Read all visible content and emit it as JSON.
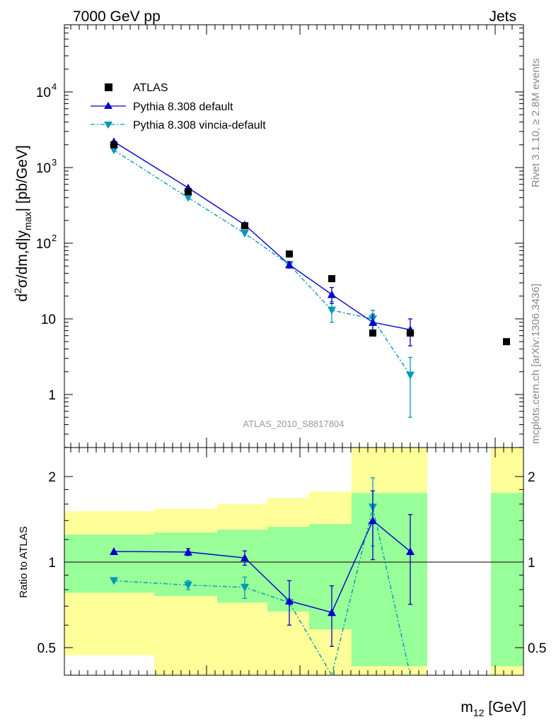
{
  "header": {
    "left": "7000 GeV pp",
    "right": "Jets"
  },
  "side_text": {
    "top": "Rivet 3.1.10, ≥ 2.8M events",
    "bottom": "mcplots.cern.ch [arXiv:1306.3436]"
  },
  "watermark": "ATLAS_2010_S8817804",
  "x_axis_label": "m",
  "x_axis_label_sub": "12",
  "x_axis_unit": " [GeV]",
  "main_ylabel_parts": [
    "d",
    "2",
    "σ/dm,d|y",
    "max",
    "| [pb/GeV]"
  ],
  "ratio_ylabel": "Ratio to ATLAS",
  "legend": [
    {
      "label": "ATLAS",
      "marker": "square",
      "color": "#000000"
    },
    {
      "label": "Pythia 8.308 default",
      "marker": "triangle-up",
      "color": "#0000cc"
    },
    {
      "label": "Pythia 8.308 vincia-default",
      "marker": "triangle-down",
      "color": "#0099bb"
    }
  ],
  "chart_data": {
    "type": "scatter",
    "title": "",
    "xlabel": "m12 [GeV]",
    "ylabel": "d2σ/dm,d|ymax| [pb/GeV]",
    "yscale": "log",
    "ylim": [
      0.17,
      90000
    ],
    "y_ticks": [
      "1",
      "10",
      "10^2",
      "10^3",
      "10^4"
    ],
    "bins": [
      {
        "atlas": 2000,
        "default": 2200,
        "vincia": 1700,
        "default_err": 0,
        "vincia_err": 0
      },
      {
        "atlas": 480,
        "default": 540,
        "vincia": 400,
        "default_err": 0,
        "vincia_err": 0
      },
      {
        "atlas": 170,
        "default": 175,
        "vincia": 135,
        "default_err": 0,
        "vincia_err": 0
      },
      {
        "atlas": 72,
        "default": 52,
        "vincia": 52,
        "default_err": 5,
        "vincia_err": 5
      },
      {
        "atlas": 34,
        "default": 21,
        "vincia": 13,
        "default_err": 5,
        "vincia_err": 4
      },
      {
        "atlas": 6.5,
        "default": 9,
        "vincia": 10,
        "default_err": 2.5,
        "vincia_err": 3
      },
      {
        "atlas": 6.5,
        "default": 7.2,
        "vincia": 1.8,
        "default_err": 2.8,
        "vincia_err": 1.3
      },
      {
        "atlas": 5,
        "default": null,
        "vincia": null,
        "default_err": 0,
        "vincia_err": 0
      }
    ],
    "ratio": {
      "ylabel": "Ratio to ATLAS",
      "ylim": [
        0.43,
        2.28
      ],
      "y_ticks": [
        "0.5",
        "1",
        "2"
      ],
      "default": [
        1.09,
        1.085,
        1.035,
        0.73,
        0.665,
        1.4,
        1.09
      ],
      "default_err": [
        0,
        0.03,
        0.06,
        0.13,
        0.16,
        0.38,
        0.38
      ],
      "vincia": [
        0.86,
        0.83,
        0.815,
        0.72,
        0.3,
        1.56,
        0.2
      ],
      "vincia_err": [
        0,
        0.03,
        0.07,
        0.0,
        0.0,
        0.42,
        0.0
      ],
      "band_inner": [
        [
          0.78,
          1.25
        ],
        [
          0.76,
          1.27
        ],
        [
          0.72,
          1.3
        ],
        [
          0.67,
          1.33
        ],
        [
          0.58,
          1.36
        ],
        [
          0.43,
          1.75
        ],
        [
          0.43,
          1.75
        ],
        [
          0.43,
          1.75
        ]
      ],
      "band_outer": [
        [
          0.47,
          1.51
        ],
        [
          0.4,
          1.54
        ],
        [
          0.3,
          1.6
        ],
        [
          0.3,
          1.68
        ],
        [
          0.3,
          1.77
        ],
        [
          0.3,
          2.6
        ],
        [
          0.3,
          2.6
        ],
        [
          0.3,
          2.6
        ]
      ]
    }
  }
}
